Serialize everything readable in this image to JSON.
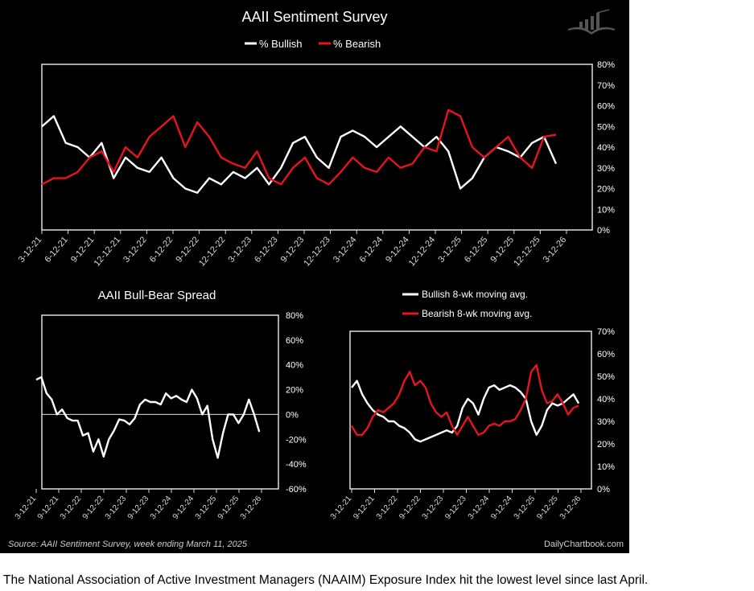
{
  "caption": "The National Association of Active Investment Managers (NAAIM) Exposure Index hit the lowest level since last April.",
  "source": "Source: AAII Sentiment Survey, week ending March 11, 2025",
  "brand": "DailyChartbook.com",
  "colors": {
    "bullish": "#ffffff",
    "bearish": "#e8141b",
    "background": "#000000"
  },
  "chart_data": [
    {
      "type": "line",
      "title": "AAII Sentiment Survey",
      "legend": [
        "% Bullish",
        "% Bearish"
      ],
      "legend_position": "top-center",
      "ylim": [
        0,
        80
      ],
      "y_ticks": [
        "80%",
        "70%",
        "60%",
        "50%",
        "40%",
        "30%",
        "20%",
        "10%",
        "0%"
      ],
      "x_ticks": [
        "3-12-21",
        "6-12-21",
        "9-12-21",
        "12-12-21",
        "3-12-22",
        "6-12-22",
        "9-12-22",
        "12-12-22",
        "3-12-23",
        "6-12-23",
        "9-12-23",
        "12-12-23",
        "3-12-24",
        "6-12-24",
        "9-12-24",
        "12-12-24",
        "3-12-25",
        "6-12-25",
        "9-12-25",
        "12-12-25",
        "3-12-26"
      ],
      "series": [
        {
          "name": "% Bullish",
          "values": [
            50,
            55,
            42,
            40,
            35,
            42,
            25,
            35,
            30,
            28,
            35,
            25,
            20,
            18,
            25,
            22,
            28,
            25,
            30,
            22,
            30,
            42,
            45,
            35,
            30,
            45,
            48,
            45,
            40,
            45,
            50,
            45,
            40,
            45,
            38,
            20,
            25,
            35,
            40,
            38,
            35,
            42,
            45,
            32
          ]
        },
        {
          "name": "% Bearish",
          "values": [
            22,
            25,
            25,
            28,
            35,
            38,
            28,
            40,
            35,
            45,
            50,
            55,
            40,
            52,
            45,
            35,
            32,
            30,
            38,
            25,
            22,
            30,
            35,
            25,
            22,
            28,
            35,
            30,
            28,
            35,
            30,
            32,
            40,
            38,
            58,
            55,
            40,
            35,
            40,
            45,
            35,
            30,
            45,
            46
          ]
        }
      ]
    },
    {
      "type": "line",
      "title": "AAII Bull-Bear Spread",
      "ylim": [
        -60,
        80
      ],
      "y_ticks": [
        "80%",
        "60%",
        "40%",
        "20%",
        "0%",
        "-20%",
        "-40%",
        "-60%"
      ],
      "x_ticks": [
        "3-12-21",
        "9-12-21",
        "3-12-22",
        "9-12-22",
        "3-12-23",
        "9-12-23",
        "3-12-24",
        "9-12-24",
        "3-12-25",
        "9-12-25",
        "3-12-26"
      ],
      "series": [
        {
          "name": "Bull-Bear Spread",
          "values": [
            28,
            30,
            17,
            12,
            0,
            4,
            -3,
            -5,
            -5,
            -17,
            -15,
            -30,
            -20,
            -34,
            -20,
            -13,
            -4,
            -5,
            -8,
            -3,
            8,
            12,
            10,
            10,
            8,
            17,
            13,
            15,
            12,
            10,
            20,
            13,
            0,
            7,
            -20,
            -35,
            -15,
            0,
            0,
            -7,
            0,
            12,
            0,
            -14
          ]
        }
      ]
    },
    {
      "type": "line",
      "title": "",
      "legend": [
        "Bullish 8-wk moving avg.",
        "Bearish 8-wk moving avg."
      ],
      "legend_position": "top-left",
      "ylim": [
        0,
        70
      ],
      "y_ticks": [
        "70%",
        "60%",
        "50%",
        "40%",
        "30%",
        "20%",
        "10%",
        "0%"
      ],
      "x_ticks": [
        "3-12-21",
        "9-12-21",
        "3-12-22",
        "9-12-22",
        "3-12-23",
        "9-12-23",
        "3-12-24",
        "9-12-24",
        "3-12-25",
        "9-12-25",
        "3-12-26"
      ],
      "series": [
        {
          "name": "Bullish 8-wk moving avg.",
          "values": [
            45,
            48,
            42,
            38,
            35,
            33,
            32,
            30,
            30,
            28,
            27,
            25,
            22,
            21,
            22,
            23,
            24,
            25,
            26,
            25,
            28,
            36,
            40,
            38,
            33,
            40,
            45,
            46,
            44,
            45,
            46,
            45,
            43,
            40,
            30,
            24,
            28,
            35,
            38,
            37,
            38,
            40,
            42,
            38
          ]
        },
        {
          "name": "Bearish 8-wk moving avg.",
          "values": [
            28,
            24,
            24,
            27,
            32,
            35,
            34,
            36,
            38,
            42,
            48,
            52,
            46,
            48,
            45,
            38,
            34,
            32,
            34,
            28,
            24,
            28,
            32,
            28,
            24,
            25,
            28,
            29,
            28,
            30,
            30,
            31,
            35,
            40,
            52,
            55,
            44,
            38,
            39,
            42,
            38,
            33,
            36,
            37
          ]
        }
      ]
    }
  ]
}
